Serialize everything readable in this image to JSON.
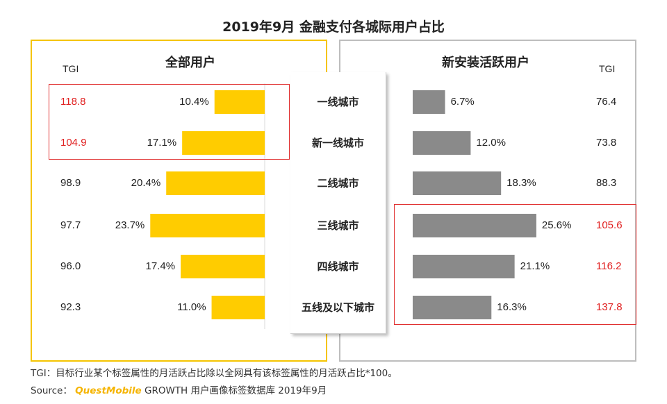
{
  "title": "2019年9月 金融支付各城际用户占比",
  "left_panel": {
    "title": "全部用户",
    "tgi_header": "TGI"
  },
  "right_panel": {
    "title": "新安装活跃用户",
    "tgi_header": "TGI"
  },
  "footnote": "TGI：目标行业某个标签属性的月活跃占比除以全网具有该标签属性的月活跃占比*100。",
  "source": {
    "label": "Source：",
    "brand": "QuestMobile",
    "rest": "GROWTH 用户画像标签数据库 2019年9月"
  },
  "colors": {
    "left_bar": "#ffcc00",
    "right_bar": "#8a8a8a",
    "highlight": "#e02020",
    "left_border": "#f5c400"
  },
  "chart_data": {
    "type": "bar",
    "categories": [
      "一线城市",
      "新一线城市",
      "二线城市",
      "三线城市",
      "四线城市",
      "五线及以下城市"
    ],
    "series": [
      {
        "name": "全部用户",
        "values": [
          10.4,
          17.1,
          20.4,
          23.7,
          17.4,
          11.0
        ],
        "labels": [
          "10.4%",
          "17.1%",
          "20.4%",
          "23.7%",
          "17.4%",
          "11.0%"
        ],
        "tgi": [
          "118.8",
          "104.9",
          "98.9",
          "97.7",
          "96.0",
          "92.3"
        ],
        "highlighted": [
          0,
          1
        ]
      },
      {
        "name": "新安装活跃用户",
        "values": [
          6.7,
          12.0,
          18.3,
          25.6,
          21.1,
          16.3
        ],
        "labels": [
          "6.7%",
          "12.0%",
          "18.3%",
          "25.6%",
          "21.1%",
          "16.3%"
        ],
        "tgi": [
          "76.4",
          "73.8",
          "88.3",
          "105.6",
          "116.2",
          "137.8"
        ],
        "highlighted": [
          3,
          4,
          5
        ]
      }
    ]
  }
}
